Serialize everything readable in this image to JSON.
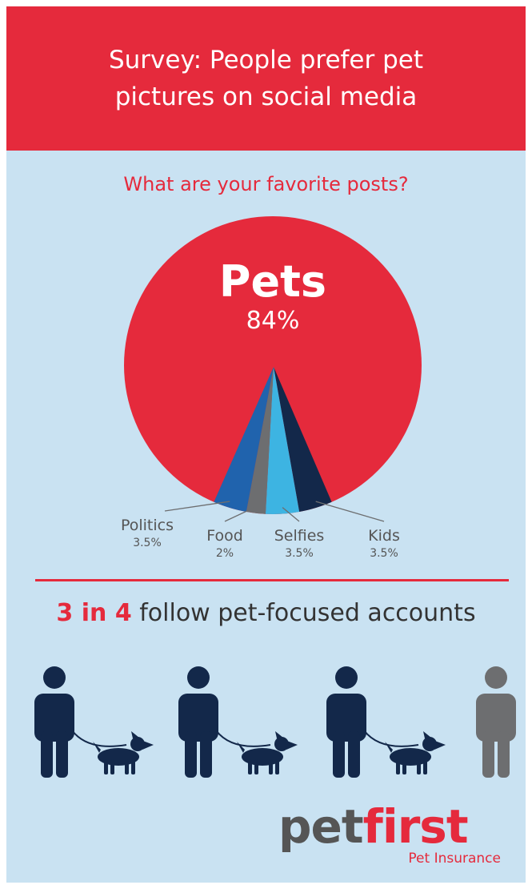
{
  "header": {
    "title": "Survey: People prefer pet\npictures on social media"
  },
  "chart_data": {
    "type": "pie",
    "title": "What are your favorite posts?",
    "slices": [
      {
        "label": "Pets",
        "value": 84,
        "value_label": "84%",
        "color": "#e52a3c"
      },
      {
        "label": "Kids",
        "value": 3.5,
        "value_label": "3.5%",
        "color": "#13284a"
      },
      {
        "label": "Selfies",
        "value": 3.5,
        "value_label": "3.5%",
        "color": "#3db4e2"
      },
      {
        "label": "Food",
        "value": 2,
        "value_label": "2%",
        "color": "#6d6e70"
      },
      {
        "label": "Politics",
        "value": 3.5,
        "value_label": "3.5%",
        "color": "#2063ad"
      }
    ]
  },
  "stat": {
    "highlight": "3 in 4",
    "text": " follow pet-focused accounts",
    "followers": 3,
    "total": 4
  },
  "logo": {
    "pet": "pet",
    "first": "first",
    "tagline": "Pet Insurance"
  },
  "colors": {
    "accent": "#e52a3c",
    "navy": "#13284a",
    "grey": "#6d6e70",
    "background": "#c9e2f2"
  }
}
